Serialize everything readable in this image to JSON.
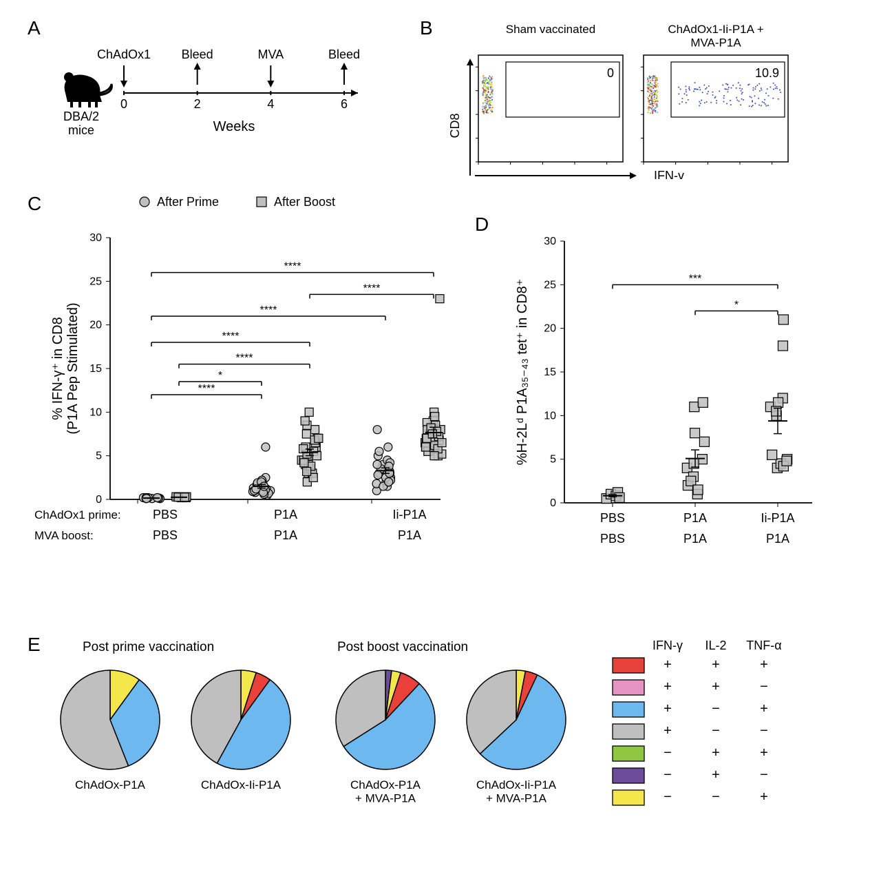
{
  "panelA": {
    "label": "A",
    "mouse_label": "DBA/2\nmice",
    "timeline": {
      "events": [
        {
          "week": 0,
          "label": "ChAdOx1",
          "dir": "down"
        },
        {
          "week": 2,
          "label": "Bleed",
          "dir": "up"
        },
        {
          "week": 4,
          "label": "MVA",
          "dir": "down"
        },
        {
          "week": 6,
          "label": "Bleed",
          "dir": "up"
        }
      ],
      "xlabel": "Weeks",
      "ticks": [
        0,
        2,
        4,
        6
      ]
    }
  },
  "panelB": {
    "label": "B",
    "plots": [
      {
        "title": "Sham vaccinated",
        "gate_value": "0"
      },
      {
        "title": "ChAdOx1-Ii-P1A +\nMVA-P1A",
        "gate_value": "10.9"
      }
    ],
    "y_axis": "CD8",
    "x_axis": "IFN-γ"
  },
  "panelC": {
    "label": "C",
    "legend": [
      {
        "marker": "circle",
        "label": "After Prime",
        "fill": "#bfbfbf"
      },
      {
        "marker": "square",
        "label": "After Boost",
        "fill": "#bfbfbf"
      }
    ],
    "ylabel": "% IFN-γ⁺ in CD8\n(P1A Pep Stimulated)",
    "ylim": [
      0,
      30
    ],
    "yticks": [
      0,
      5,
      10,
      15,
      20,
      25,
      30
    ],
    "x_groups": [
      "PBS",
      "P1A",
      "Ii-P1A"
    ],
    "x_prime_label": "ChAdOx1 prime:",
    "x_boost_label": "MVA boost:",
    "x_boost_values": [
      "PBS",
      "P1A",
      "P1A"
    ],
    "point_color": "#bfbfbf",
    "point_stroke": "#000000",
    "error_bar_color": "#000000",
    "sig_bars": [
      {
        "from": 0,
        "to": 2,
        "shape_a": "prime",
        "shape_b": "boost",
        "stars": "****",
        "y": 12
      },
      {
        "from": 0,
        "to": 3,
        "shape_a": "prime",
        "shape_b": "prime",
        "stars": "****",
        "y": 18
      },
      {
        "from": 1,
        "to": 3,
        "shape_a": "boost",
        "shape_b": "boost",
        "stars": "****",
        "y": 15.5
      },
      {
        "from": 1,
        "to": 2,
        "shape_a": "prime",
        "shape_b": "prime",
        "stars": "*",
        "y": 13.5
      },
      {
        "from": 0,
        "to": 4,
        "shape_a": "prime",
        "shape_b": "prime",
        "stars": "****",
        "y": 21
      },
      {
        "from": 0,
        "to": 5,
        "shape_a": "prime",
        "shape_b": "boost",
        "stars": "****",
        "y": 26
      },
      {
        "from": 3,
        "to": 5,
        "shape_a": "boost",
        "shape_b": "boost",
        "stars": "****",
        "y": 23.5
      }
    ],
    "data": {
      "pbs_prime": [
        0.1,
        0.2,
        0.1,
        0.15,
        0.2,
        0.1,
        0.2,
        0.15,
        0.1,
        0.2
      ],
      "pbs_boost": [
        0.2,
        0.3,
        0.25,
        0.2,
        0.3,
        0.25,
        0.2,
        0.3,
        0.25
      ],
      "p1a_prime": [
        0.5,
        1,
        2,
        1.2,
        0.8,
        2.5,
        1.5,
        1,
        0.7,
        6,
        1.8,
        1.3,
        0.9,
        2.2,
        1.1,
        1.4,
        0.6,
        1,
        1.7,
        1.9,
        0.8,
        2,
        1.5,
        1,
        1.2
      ],
      "p1a_boost": [
        2,
        3,
        4,
        5,
        6,
        7,
        4.5,
        3.5,
        5.5,
        8,
        6.5,
        4,
        3,
        2.5,
        10,
        5,
        4.5,
        7.5,
        6,
        3.8,
        5.2,
        8.5,
        4.2,
        6.8,
        3.2,
        9,
        7,
        5.8
      ],
      "iip1a_prime": [
        1,
        2,
        3,
        4,
        2.5,
        3.5,
        1.5,
        5,
        4.5,
        8,
        2,
        3,
        5.5,
        1.8,
        2.8,
        4.2,
        3.2,
        2.2,
        6,
        3.8,
        2.5,
        4,
        1.5,
        3,
        2
      ],
      "iip1a_boost": [
        5,
        6,
        7,
        8,
        9,
        6.5,
        7.5,
        5.5,
        8.5,
        6,
        7,
        10,
        6.8,
        5.2,
        7.2,
        8.8,
        6.2,
        5.8,
        9.5,
        7.8,
        6.5,
        8,
        7,
        23,
        6,
        5,
        8.2,
        7.5
      ]
    }
  },
  "panelD": {
    "label": "D",
    "ylabel": "%H-2Lᵈ P1A₃₅₋₄₃ tet⁺ in CD8⁺",
    "ylim": [
      0,
      30
    ],
    "yticks": [
      0,
      5,
      10,
      15,
      20,
      25,
      30
    ],
    "x_groups": [
      "PBS",
      "P1A",
      "Ii-P1A"
    ],
    "x_boost_values": [
      "PBS",
      "P1A",
      "P1A"
    ],
    "point_color": "#bfbfbf",
    "point_stroke": "#000000",
    "sig_bars": [
      {
        "from": 0,
        "to": 2,
        "stars": "***",
        "y": 25
      },
      {
        "from": 1,
        "to": 2,
        "stars": "*",
        "y": 22
      }
    ],
    "data": {
      "pbs": [
        0.5,
        1,
        0.8,
        1.2,
        0.6
      ],
      "p1a": [
        1,
        2,
        4,
        5,
        7,
        11,
        3,
        2.5,
        1.5,
        8,
        4.5,
        11.5
      ],
      "iip1a": [
        4,
        5,
        4.5,
        10,
        11,
        12,
        5.5,
        18,
        21,
        4.2,
        11.5,
        10.5,
        4.8
      ]
    }
  },
  "panelE": {
    "label": "E",
    "titles": [
      "Post prime vaccination",
      "Post boost vaccination"
    ],
    "pies": [
      {
        "label": "ChAdOx-P1A",
        "slices": [
          {
            "color": "#f4e74c",
            "frac": 0.1
          },
          {
            "color": "#6db8ee",
            "frac": 0.34
          },
          {
            "color": "#bfbfbf",
            "frac": 0.56
          }
        ]
      },
      {
        "label": "ChAdOx-Ii-P1A",
        "slices": [
          {
            "color": "#f4e74c",
            "frac": 0.05
          },
          {
            "color": "#e8413a",
            "frac": 0.05
          },
          {
            "color": "#6db8ee",
            "frac": 0.48
          },
          {
            "color": "#bfbfbf",
            "frac": 0.42
          }
        ]
      },
      {
        "label": "ChAdOx-P1A\n+ MVA-P1A",
        "slices": [
          {
            "color": "#6d4c9c",
            "frac": 0.02
          },
          {
            "color": "#f4e74c",
            "frac": 0.03
          },
          {
            "color": "#e8413a",
            "frac": 0.07
          },
          {
            "color": "#6db8ee",
            "frac": 0.54
          },
          {
            "color": "#bfbfbf",
            "frac": 0.34
          }
        ]
      },
      {
        "label": "ChAdOx-Ii-P1A\n+ MVA-P1A",
        "slices": [
          {
            "color": "#f4e74c",
            "frac": 0.03
          },
          {
            "color": "#e8413a",
            "frac": 0.04
          },
          {
            "color": "#6db8ee",
            "frac": 0.56
          },
          {
            "color": "#bfbfbf",
            "frac": 0.37
          }
        ]
      }
    ],
    "stroke_color": "#000000",
    "legend": {
      "headers": [
        "IFN-γ",
        "IL-2",
        "TNF-α"
      ],
      "rows": [
        {
          "color": "#e8413a",
          "vals": [
            "+",
            "+",
            "+"
          ]
        },
        {
          "color": "#e793c3",
          "vals": [
            "+",
            "+",
            "−"
          ]
        },
        {
          "color": "#6db8ee",
          "vals": [
            "+",
            "−",
            "+"
          ]
        },
        {
          "color": "#bfbfbf",
          "vals": [
            "+",
            "−",
            "−"
          ]
        },
        {
          "color": "#8fc742",
          "vals": [
            "−",
            "+",
            "+"
          ]
        },
        {
          "color": "#6d4c9c",
          "vals": [
            "−",
            "+",
            "−"
          ]
        },
        {
          "color": "#f4e74c",
          "vals": [
            "−",
            "−",
            "+"
          ]
        }
      ]
    }
  }
}
